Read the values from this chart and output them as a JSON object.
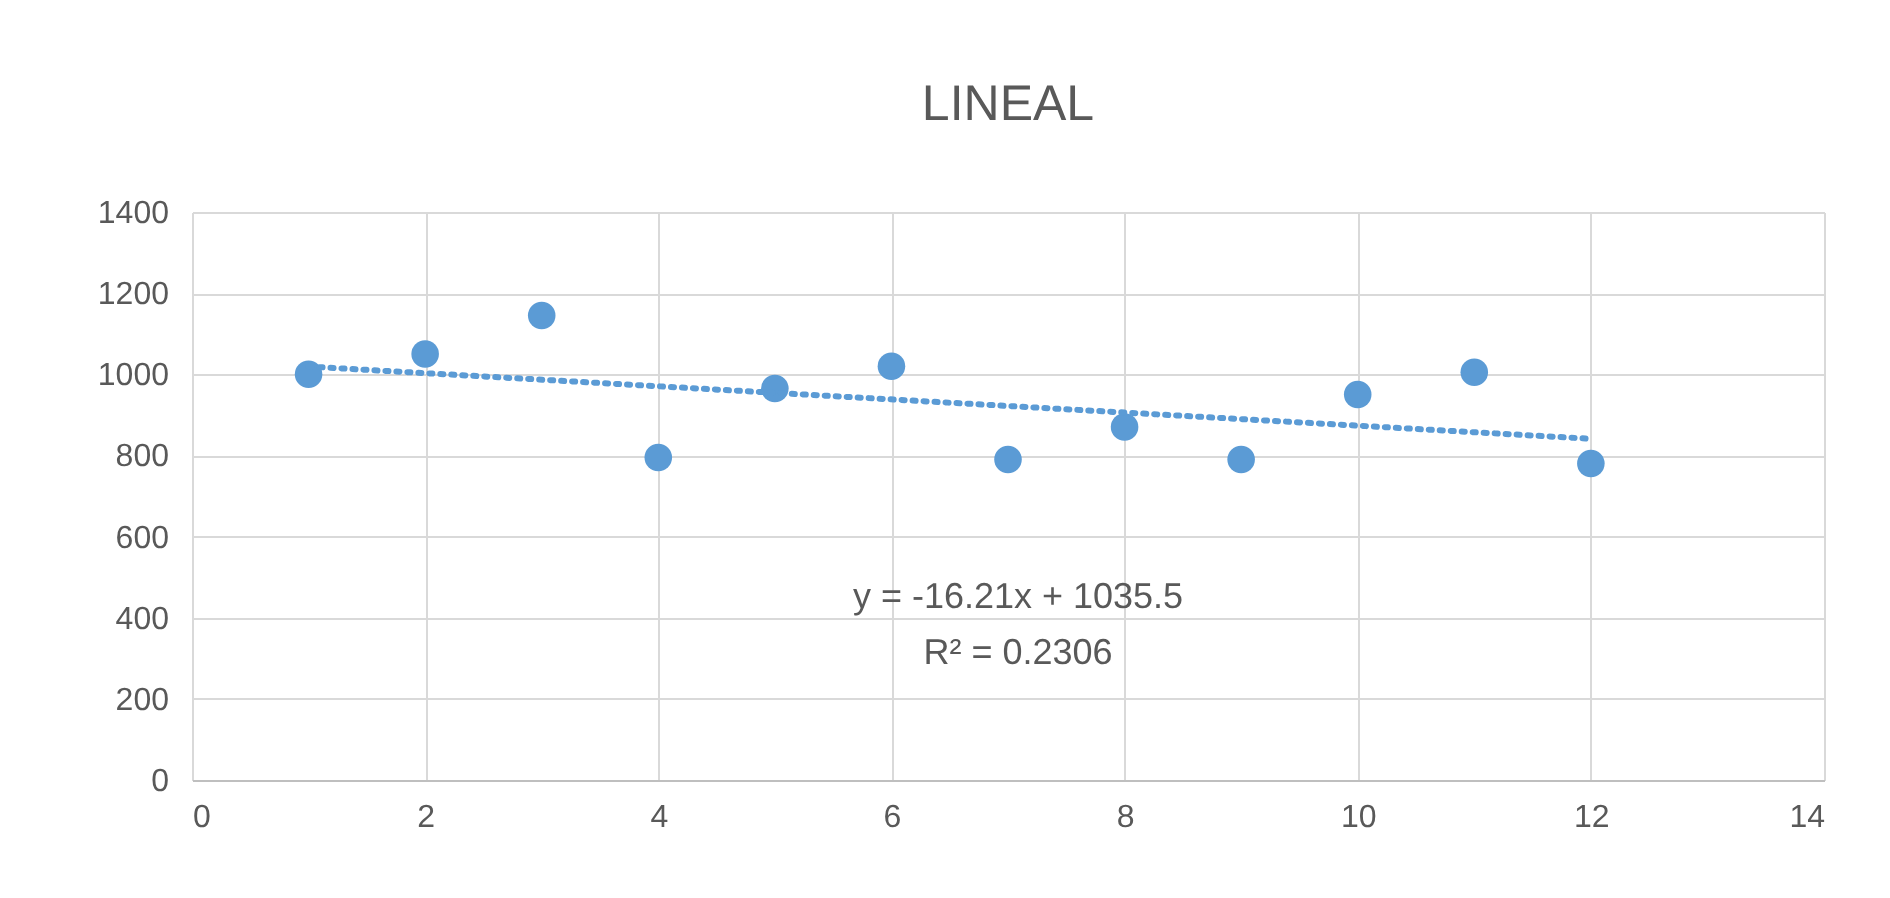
{
  "chart_data": {
    "type": "scatter",
    "title": "LINEAL",
    "x": [
      1,
      2,
      3,
      4,
      5,
      6,
      7,
      8,
      9,
      10,
      11,
      12
    ],
    "series": [
      {
        "type": "scatter",
        "color": "#5b9bd5",
        "marker": "circle",
        "values": [
          1000,
          1050,
          1145,
          795,
          965,
          1020,
          790,
          870,
          790,
          950,
          1005,
          780
        ]
      },
      {
        "type": "line",
        "color": "#5b9bd5",
        "line_style": "dotted",
        "marker": "none",
        "x": [
          1,
          12
        ],
        "values": [
          1019,
          841
        ]
      }
    ],
    "annotations": [
      "y = -16.21x + 1035.5",
      "R² = 0.2306"
    ],
    "xlim": [
      0,
      14
    ],
    "xticks": [
      0,
      2,
      4,
      6,
      8,
      10,
      12,
      14
    ],
    "ylim": [
      0,
      1400
    ],
    "yticks": [
      0,
      200,
      400,
      600,
      800,
      1000,
      1200,
      1400
    ],
    "grid": true
  }
}
